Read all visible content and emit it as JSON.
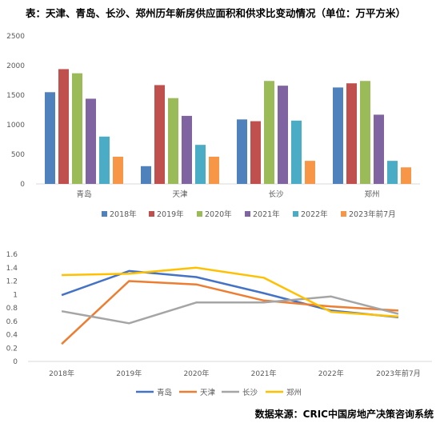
{
  "title": "表：天津、青岛、长沙、郑州历年新房供应面积和供求比变动情况（单位：万平方米）",
  "source": "数据来源：CRIC中国房地产决策咨询系统",
  "chart_data": [
    {
      "type": "bar",
      "categories": [
        "青岛",
        "天津",
        "长沙",
        "郑州"
      ],
      "series": [
        {
          "name": "2018年",
          "color": "#4f81bd",
          "values": [
            1550,
            300,
            1090,
            1630
          ]
        },
        {
          "name": "2019年",
          "color": "#c0504d",
          "values": [
            1940,
            1670,
            1060,
            1700
          ]
        },
        {
          "name": "2020年",
          "color": "#9bbb59",
          "values": [
            1870,
            1450,
            1740,
            1740
          ]
        },
        {
          "name": "2021年",
          "color": "#8064a2",
          "values": [
            1440,
            1150,
            1660,
            1170
          ]
        },
        {
          "name": "2022年",
          "color": "#4bacc6",
          "values": [
            800,
            660,
            1070,
            390
          ]
        },
        {
          "name": "2023年前7月",
          "color": "#f79646",
          "values": [
            460,
            460,
            390,
            280
          ]
        }
      ],
      "ylim": [
        0,
        2500
      ],
      "yticks": [
        0,
        500,
        1000,
        1500,
        2000,
        2500
      ],
      "grid": false,
      "legend": "bottom"
    },
    {
      "type": "line",
      "x": [
        "2018年",
        "2019年",
        "2020年",
        "2021年",
        "2022年",
        "2023年前7月"
      ],
      "series": [
        {
          "name": "青岛",
          "color": "#4472c4",
          "values": [
            0.99,
            1.35,
            1.26,
            1.02,
            0.76,
            0.66
          ]
        },
        {
          "name": "天津",
          "color": "#ed7d31",
          "values": [
            0.26,
            1.2,
            1.15,
            0.91,
            0.82,
            0.76
          ]
        },
        {
          "name": "长沙",
          "color": "#a5a5a5",
          "values": [
            0.75,
            0.57,
            0.88,
            0.88,
            0.97,
            0.71
          ]
        },
        {
          "name": "郑州",
          "color": "#ffc000",
          "values": [
            1.29,
            1.31,
            1.4,
            1.25,
            0.74,
            0.67
          ]
        }
      ],
      "ylim": [
        0,
        1.6
      ],
      "yticks": [
        "0",
        "0.2",
        "0.4",
        "0.6",
        "0.8",
        "1",
        "1.2",
        "1.4",
        "1.6"
      ],
      "grid": false,
      "legend": "bottom"
    }
  ]
}
